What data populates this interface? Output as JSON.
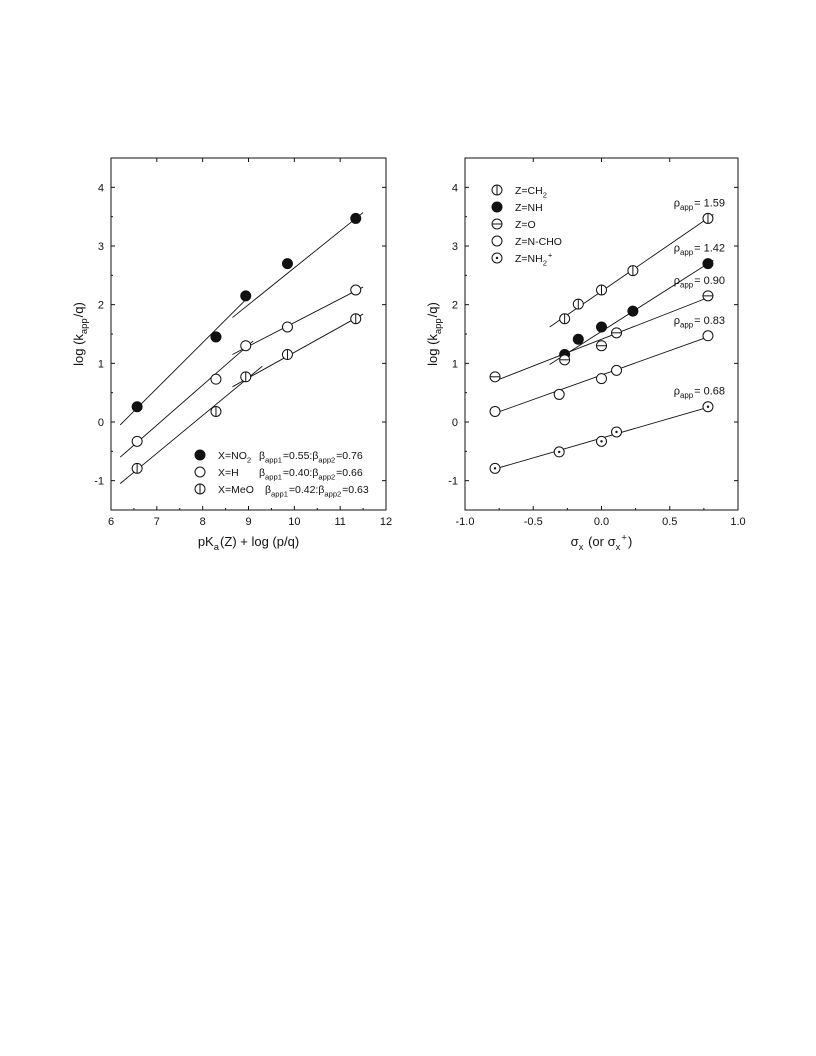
{
  "chart_data": [
    {
      "type": "scatter",
      "xlabel": "pK_a(Z) + log (p/q)",
      "ylabel": "log (k_app/q)",
      "xlim": [
        6,
        12
      ],
      "ylim": [
        -1.5,
        4.5
      ],
      "xticks": [
        "6",
        "7",
        "8",
        "9",
        "10",
        "11",
        "12"
      ],
      "yticks": [
        "-1",
        "0",
        "1",
        "2",
        "3",
        "4"
      ],
      "legend_position": "bottom-right",
      "series": [
        {
          "name": "X=NO2",
          "legend_suffix": "β_app1=0.55:β_app2=0.76",
          "marker": "filled",
          "points": [
            [
              6.57,
              0.26
            ],
            [
              8.29,
              1.45
            ],
            [
              8.94,
              2.15
            ],
            [
              9.85,
              2.7
            ],
            [
              11.34,
              3.47
            ]
          ],
          "fits": [
            [
              [
                6.2,
                -0.05
              ],
              [
                9.05,
                2.17
              ]
            ],
            [
              [
                8.65,
                1.78
              ],
              [
                11.5,
                3.57
              ]
            ]
          ]
        },
        {
          "name": "X=H",
          "legend_suffix": "β_app1=0.40:β_app2=0.66",
          "marker": "open",
          "points": [
            [
              6.57,
              -0.33
            ],
            [
              8.29,
              0.73
            ],
            [
              8.94,
              1.3
            ],
            [
              9.85,
              1.62
            ],
            [
              11.34,
              2.25
            ]
          ],
          "fits": [
            [
              [
                6.2,
                -0.6
              ],
              [
                9.1,
                1.38
              ]
            ],
            [
              [
                8.65,
                1.15
              ],
              [
                11.5,
                2.3
              ]
            ]
          ]
        },
        {
          "name": "X=MeO",
          "legend_suffix": "β_app1=0.42:β_app2=0.63",
          "marker": "vertical-bar",
          "points": [
            [
              6.57,
              -0.79
            ],
            [
              8.29,
              0.18
            ],
            [
              8.94,
              0.77
            ],
            [
              9.85,
              1.15
            ],
            [
              11.34,
              1.76
            ]
          ],
          "fits": [
            [
              [
                6.2,
                -1.05
              ],
              [
                9.3,
                0.95
              ]
            ],
            [
              [
                8.65,
                0.6
              ],
              [
                11.5,
                1.84
              ]
            ]
          ]
        }
      ]
    },
    {
      "type": "scatter",
      "xlabel": "σ_x (or σ_x^+)",
      "ylabel": "log (k_app/q)",
      "xlim": [
        -1.0,
        1.0
      ],
      "ylim": [
        -1.5,
        4.5
      ],
      "xticks": [
        "-1.0",
        "-0.5",
        "0.0",
        "0.5",
        "1.0"
      ],
      "yticks": [
        "-1",
        "0",
        "1",
        "2",
        "3",
        "4"
      ],
      "legend_position": "top-left",
      "series": [
        {
          "name": "Z=CH2",
          "rho_label": "1.59",
          "marker": "vertical-bar",
          "points": [
            [
              -0.27,
              1.76
            ],
            [
              -0.17,
              2.01
            ],
            [
              0.0,
              2.25
            ],
            [
              0.23,
              2.58
            ],
            [
              0.78,
              3.47
            ]
          ],
          "fits": [
            [
              [
                -0.38,
                1.62
              ],
              [
                0.82,
                3.54
              ]
            ]
          ]
        },
        {
          "name": "Z=NH",
          "rho_label": "1.42",
          "marker": "filled",
          "points": [
            [
              -0.27,
              1.15
            ],
            [
              -0.17,
              1.41
            ],
            [
              0.0,
              1.62
            ],
            [
              0.23,
              1.89
            ],
            [
              0.78,
              2.7
            ]
          ],
          "fits": [
            [
              [
                -0.38,
                0.98
              ],
              [
                0.82,
                2.76
              ]
            ]
          ]
        },
        {
          "name": "Z=O",
          "rho_label": "0.90",
          "marker": "horizontal-bar",
          "points": [
            [
              -0.78,
              0.77
            ],
            [
              -0.27,
              1.06
            ],
            [
              0.0,
              1.3
            ],
            [
              0.11,
              1.52
            ],
            [
              0.78,
              2.15
            ]
          ],
          "fits": [
            [
              [
                -0.78,
                0.7
              ],
              [
                0.78,
                2.12
              ]
            ]
          ]
        },
        {
          "name": "Z=N-CHO",
          "rho_label": "0.83",
          "marker": "open",
          "points": [
            [
              -0.78,
              0.18
            ],
            [
              -0.31,
              0.47
            ],
            [
              0.0,
              0.74
            ],
            [
              0.11,
              0.88
            ],
            [
              0.78,
              1.47
            ]
          ],
          "fits": [
            [
              [
                -0.78,
                0.15
              ],
              [
                0.78,
                1.45
              ]
            ]
          ]
        },
        {
          "name": "Z=NH2+",
          "rho_label": "0.68",
          "marker": "dot",
          "points": [
            [
              -0.78,
              -0.79
            ],
            [
              -0.31,
              -0.51
            ],
            [
              0.0,
              -0.33
            ],
            [
              0.11,
              -0.17
            ],
            [
              0.78,
              0.26
            ]
          ],
          "fits": [
            [
              [
                -0.78,
                -0.8
              ],
              [
                0.78,
                0.25
              ]
            ]
          ]
        }
      ]
    }
  ]
}
